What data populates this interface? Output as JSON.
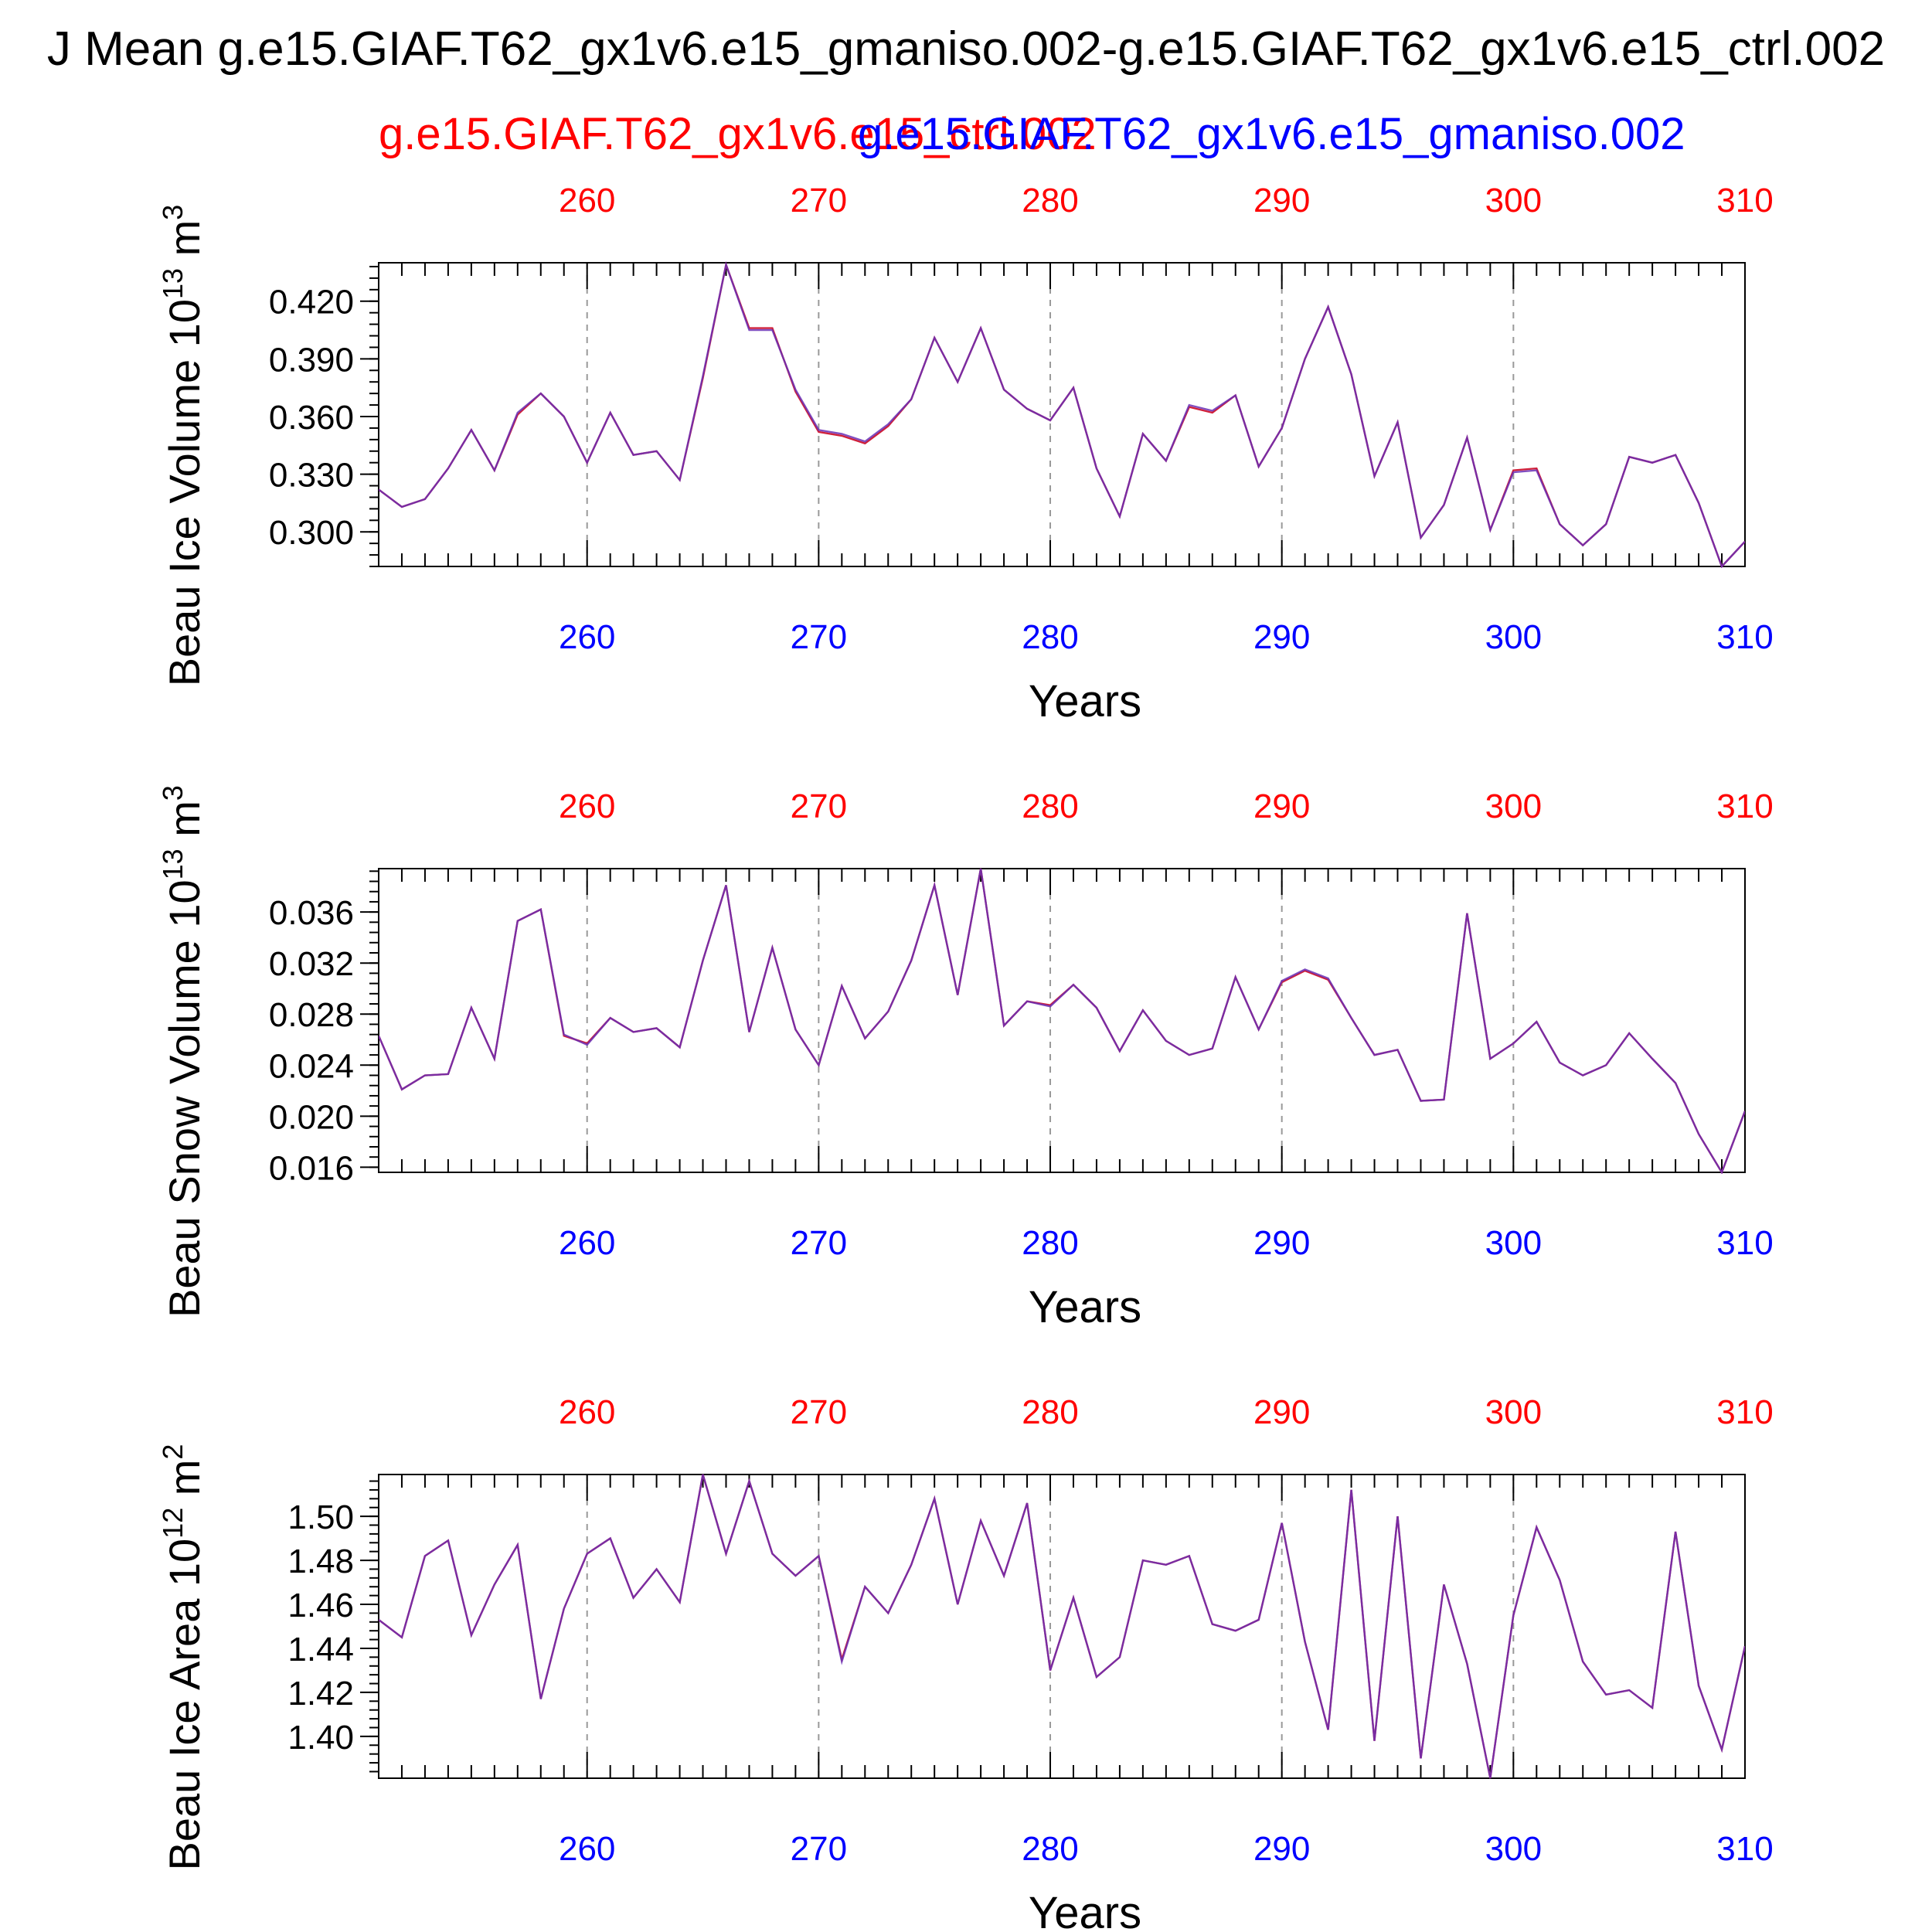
{
  "header": {
    "title": "J Mean g.e15.GIAF.T62_gx1v6.e15_gmaniso.002-g.e15.GIAF.T62_gx1v6.e15_ctrl.002",
    "legend_ctrl": "g.e15.GIAF.T62_gx1v6.e15_ctrl.002",
    "legend_gmaniso": "g.e15.GIAF.T62_gx1v6.e15_gmaniso.002"
  },
  "colors": {
    "ctrl": "#ff0000",
    "gmaniso": "#0000ff",
    "ctrl_line": "#d0203a",
    "gmaniso_line": "#6a2fb5"
  },
  "chart_data": [
    {
      "type": "line",
      "ylabel_main": "Beau Ice Volume 10",
      "ylabel_exp": "13",
      "ylabel_unit": " m",
      "ylabel_unit_exp": "3",
      "xlabel": "Years",
      "xlim": [
        251,
        310
      ],
      "ylim": [
        0.282,
        0.44
      ],
      "xticks": [
        260,
        270,
        280,
        290,
        300,
        310
      ],
      "yticks": [
        0.3,
        0.33,
        0.36,
        0.39,
        0.42
      ],
      "ytick_labels": [
        "0.300",
        "0.330",
        "0.360",
        "0.390",
        "0.420"
      ],
      "x": [
        251,
        252,
        253,
        254,
        255,
        256,
        257,
        258,
        259,
        260,
        261,
        262,
        263,
        264,
        265,
        266,
        267,
        268,
        269,
        270,
        271,
        272,
        273,
        274,
        275,
        276,
        277,
        278,
        279,
        280,
        281,
        282,
        283,
        284,
        285,
        286,
        287,
        288,
        289,
        290,
        291,
        292,
        293,
        294,
        295,
        296,
        297,
        298,
        299,
        300,
        301,
        302,
        303,
        304,
        305,
        306,
        307,
        308,
        309,
        310
      ],
      "series": [
        {
          "name": "g.e15.GIAF.T62_gx1v6.e15_ctrl.002",
          "values": [
            0.322,
            0.313,
            0.317,
            0.333,
            0.353,
            0.332,
            0.361,
            0.372,
            0.36,
            0.336,
            0.362,
            0.34,
            0.342,
            0.327,
            0.38,
            0.439,
            0.406,
            0.406,
            0.373,
            0.352,
            0.35,
            0.346,
            0.355,
            0.369,
            0.401,
            0.378,
            0.406,
            0.374,
            0.364,
            0.358,
            0.375,
            0.333,
            0.308,
            0.351,
            0.337,
            0.365,
            0.362,
            0.371,
            0.334,
            0.354,
            0.39,
            0.417,
            0.382,
            0.329,
            0.357,
            0.297,
            0.314,
            0.349,
            0.301,
            0.332,
            0.333,
            0.304,
            0.293,
            0.304,
            0.339,
            0.336,
            0.34,
            0.315,
            0.282,
            0.295
          ]
        },
        {
          "name": "g.e15.GIAF.T62_gx1v6.e15_gmaniso.002",
          "values": [
            0.322,
            0.313,
            0.317,
            0.333,
            0.353,
            0.332,
            0.362,
            0.372,
            0.36,
            0.336,
            0.362,
            0.34,
            0.342,
            0.327,
            0.381,
            0.439,
            0.405,
            0.405,
            0.374,
            0.353,
            0.351,
            0.347,
            0.356,
            0.369,
            0.401,
            0.378,
            0.406,
            0.374,
            0.364,
            0.358,
            0.375,
            0.333,
            0.308,
            0.351,
            0.337,
            0.366,
            0.363,
            0.371,
            0.334,
            0.354,
            0.39,
            0.417,
            0.382,
            0.329,
            0.357,
            0.297,
            0.314,
            0.349,
            0.301,
            0.331,
            0.332,
            0.304,
            0.293,
            0.304,
            0.339,
            0.336,
            0.34,
            0.315,
            0.282,
            0.295
          ]
        }
      ]
    },
    {
      "type": "line",
      "ylabel_main": "Beau Snow Volume 10",
      "ylabel_exp": "13",
      "ylabel_unit": " m",
      "ylabel_unit_exp": "3",
      "xlabel": "Years",
      "xlim": [
        251,
        310
      ],
      "ylim": [
        0.0156,
        0.0394
      ],
      "xticks": [
        260,
        270,
        280,
        290,
        300,
        310
      ],
      "yticks": [
        0.016,
        0.02,
        0.024,
        0.028,
        0.032,
        0.036
      ],
      "ytick_labels": [
        "0.016",
        "0.020",
        "0.024",
        "0.028",
        "0.032",
        "0.036"
      ],
      "x": [
        251,
        252,
        253,
        254,
        255,
        256,
        257,
        258,
        259,
        260,
        261,
        262,
        263,
        264,
        265,
        266,
        267,
        268,
        269,
        270,
        271,
        272,
        273,
        274,
        275,
        276,
        277,
        278,
        279,
        280,
        281,
        282,
        283,
        284,
        285,
        286,
        287,
        288,
        289,
        290,
        291,
        292,
        293,
        294,
        295,
        296,
        297,
        298,
        299,
        300,
        301,
        302,
        303,
        304,
        305,
        306,
        307,
        308,
        309,
        310
      ],
      "series": [
        {
          "name": "g.e15.GIAF.T62_gx1v6.e15_ctrl.002",
          "values": [
            0.0263,
            0.0221,
            0.0232,
            0.0233,
            0.0285,
            0.0245,
            0.0353,
            0.0362,
            0.0263,
            0.0257,
            0.0277,
            0.0266,
            0.0269,
            0.0254,
            0.0322,
            0.0381,
            0.0266,
            0.0332,
            0.0268,
            0.024,
            0.0302,
            0.0261,
            0.0282,
            0.0322,
            0.0381,
            0.0295,
            0.0394,
            0.0271,
            0.029,
            0.0287,
            0.0303,
            0.0285,
            0.0251,
            0.0283,
            0.0259,
            0.0248,
            0.0253,
            0.0309,
            0.0268,
            0.0305,
            0.0314,
            0.0307,
            0.0277,
            0.0248,
            0.0252,
            0.0212,
            0.0213,
            0.0359,
            0.0245,
            0.0257,
            0.0274,
            0.0242,
            0.0232,
            0.024,
            0.0265,
            0.0245,
            0.0226,
            0.0186,
            0.0156,
            0.0204
          ]
        },
        {
          "name": "g.e15.GIAF.T62_gx1v6.e15_gmaniso.002",
          "values": [
            0.0263,
            0.0221,
            0.0232,
            0.0233,
            0.0285,
            0.0245,
            0.0353,
            0.0362,
            0.0264,
            0.0256,
            0.0277,
            0.0266,
            0.0269,
            0.0254,
            0.0322,
            0.0381,
            0.0266,
            0.0332,
            0.0268,
            0.024,
            0.0302,
            0.0261,
            0.0282,
            0.0322,
            0.0381,
            0.0295,
            0.0394,
            0.0271,
            0.029,
            0.0286,
            0.0303,
            0.0285,
            0.0251,
            0.0283,
            0.0259,
            0.0248,
            0.0253,
            0.0309,
            0.0268,
            0.0306,
            0.0315,
            0.0308,
            0.0277,
            0.0248,
            0.0252,
            0.0212,
            0.0213,
            0.0359,
            0.0245,
            0.0257,
            0.0274,
            0.0242,
            0.0232,
            0.024,
            0.0265,
            0.0245,
            0.0226,
            0.0186,
            0.0156,
            0.0204
          ]
        }
      ]
    },
    {
      "type": "line",
      "ylabel_main": "Beau Ice Area 10",
      "ylabel_exp": "12",
      "ylabel_unit": " m",
      "ylabel_unit_exp": "2",
      "xlabel": "Years",
      "xlim": [
        251,
        310
      ],
      "ylim": [
        1.381,
        1.519
      ],
      "xticks": [
        260,
        270,
        280,
        290,
        300,
        310
      ],
      "yticks": [
        1.4,
        1.42,
        1.44,
        1.46,
        1.48,
        1.5
      ],
      "ytick_labels": [
        "1.40",
        "1.42",
        "1.44",
        "1.46",
        "1.48",
        "1.50"
      ],
      "x": [
        251,
        252,
        253,
        254,
        255,
        256,
        257,
        258,
        259,
        260,
        261,
        262,
        263,
        264,
        265,
        266,
        267,
        268,
        269,
        270,
        271,
        272,
        273,
        274,
        275,
        276,
        277,
        278,
        279,
        280,
        281,
        282,
        283,
        284,
        285,
        286,
        287,
        288,
        289,
        290,
        291,
        292,
        293,
        294,
        295,
        296,
        297,
        298,
        299,
        300,
        301,
        302,
        303,
        304,
        305,
        306,
        307,
        308,
        309,
        310
      ],
      "series": [
        {
          "name": "g.e15.GIAF.T62_gx1v6.e15_ctrl.002",
          "values": [
            1.453,
            1.445,
            1.482,
            1.489,
            1.446,
            1.469,
            1.487,
            1.417,
            1.458,
            1.483,
            1.49,
            1.463,
            1.476,
            1.461,
            1.519,
            1.483,
            1.516,
            1.483,
            1.473,
            1.482,
            1.435,
            1.468,
            1.456,
            1.478,
            1.508,
            1.46,
            1.498,
            1.473,
            1.506,
            1.43,
            1.463,
            1.427,
            1.436,
            1.48,
            1.478,
            1.482,
            1.451,
            1.448,
            1.453,
            1.497,
            1.443,
            1.403,
            1.512,
            1.398,
            1.5,
            1.39,
            1.469,
            1.433,
            1.381,
            1.455,
            1.495,
            1.471,
            1.434,
            1.419,
            1.421,
            1.413,
            1.493,
            1.423,
            1.394,
            1.441
          ]
        },
        {
          "name": "g.e15.GIAF.T62_gx1v6.e15_gmaniso.002",
          "values": [
            1.453,
            1.445,
            1.482,
            1.489,
            1.446,
            1.469,
            1.487,
            1.417,
            1.458,
            1.483,
            1.49,
            1.463,
            1.476,
            1.461,
            1.519,
            1.483,
            1.516,
            1.483,
            1.473,
            1.482,
            1.434,
            1.468,
            1.456,
            1.478,
            1.508,
            1.46,
            1.498,
            1.473,
            1.506,
            1.43,
            1.463,
            1.427,
            1.436,
            1.48,
            1.478,
            1.482,
            1.451,
            1.448,
            1.453,
            1.497,
            1.443,
            1.403,
            1.512,
            1.398,
            1.5,
            1.39,
            1.469,
            1.433,
            1.381,
            1.455,
            1.495,
            1.471,
            1.434,
            1.419,
            1.421,
            1.413,
            1.493,
            1.423,
            1.394,
            1.441
          ]
        }
      ]
    }
  ]
}
